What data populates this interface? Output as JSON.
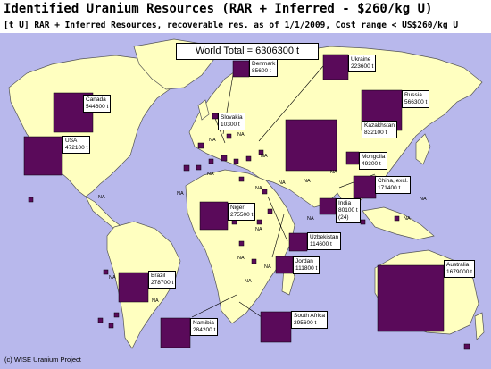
{
  "title": "Identified Uranium Resources (RAR + Inferred - $260/kg U)",
  "subtitle": "[t U] RAR + Inferred Resources, recoverable res. as of 1/1/2009, Cost range < US$260/kg U",
  "world_total": "World Total = 6306300 t",
  "copyright": "(c) WISE Uranium Project",
  "na_label": "NA",
  "colors": {
    "ocean": "#b8b8ec",
    "land": "#ffffc0",
    "border": "#555555",
    "square": "#5a0a5a"
  },
  "countries": [
    {
      "name": "Canada",
      "value": "544600 t"
    },
    {
      "name": "USA",
      "value": "472100 t"
    },
    {
      "name": "Denmark",
      "value": "85600 t"
    },
    {
      "name": "Ukraine",
      "value": "223600 t"
    },
    {
      "name": "Slovakia",
      "value": "10300 t"
    },
    {
      "name": "Russia",
      "value": "566300 t"
    },
    {
      "name": "Kazakhstan",
      "value": "832100 t"
    },
    {
      "name": "Mongolia",
      "value": "49300 t"
    },
    {
      "name": "China, excl.",
      "value": "171400 t"
    },
    {
      "name": "India",
      "value": "80100 t",
      "note": "(24)"
    },
    {
      "name": "Niger",
      "value": "275500 t"
    },
    {
      "name": "Uzbekistan",
      "value": "114600 t"
    },
    {
      "name": "Jordan",
      "value": "111800 t"
    },
    {
      "name": "Brazil",
      "value": "278700 t"
    },
    {
      "name": "Namibia",
      "value": "284200 t"
    },
    {
      "name": "South Africa",
      "value": "295600 t"
    },
    {
      "name": "Australia",
      "value": "1679000 t"
    }
  ]
}
